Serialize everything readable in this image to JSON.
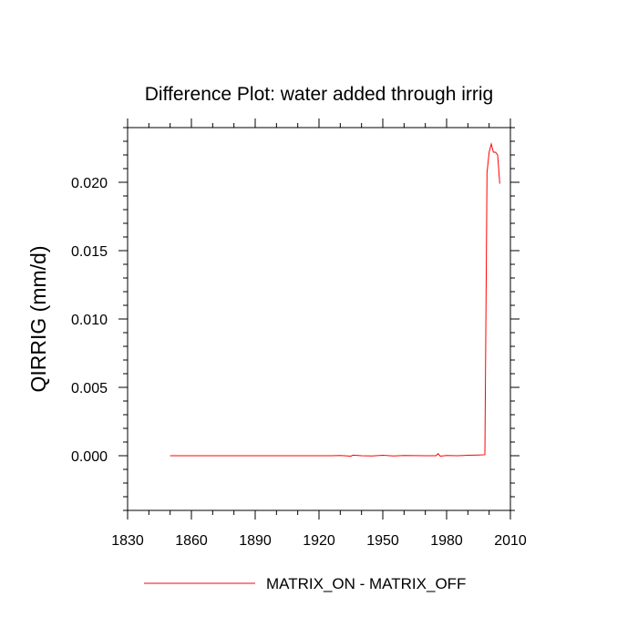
{
  "chart_data": {
    "type": "line",
    "title": "Difference Plot: water added through irrig",
    "xlabel": "",
    "ylabel": "QIRRIG  (mm/d)",
    "xlim": [
      1830,
      2010
    ],
    "ylim": [
      -0.004,
      0.024
    ],
    "x_ticks": [
      1830,
      1860,
      1890,
      1920,
      1950,
      1980,
      2010
    ],
    "x_tick_labels": [
      "1830",
      "1860",
      "1890",
      "1920",
      "1950",
      "1980",
      "2010"
    ],
    "y_ticks": [
      0.0,
      0.005,
      0.01,
      0.015,
      0.02
    ],
    "y_tick_labels": [
      "0.000",
      "0.005",
      "0.010",
      "0.015",
      "0.020"
    ],
    "legend_position": "bottom",
    "series": [
      {
        "name": "MATRIX_ON - MATRIX_OFF",
        "color": "#ff0000",
        "x": [
          1850,
          1900,
          1926,
          1930,
          1935,
          1936,
          1940,
          1945,
          1950,
          1955,
          1960,
          1970,
          1975,
          1976,
          1977,
          1980,
          1985,
          1990,
          1995,
          1998,
          1999,
          2000,
          2001,
          2002,
          2003,
          2004,
          2005
        ],
        "values": [
          0.0,
          0.0,
          0.0,
          2e-05,
          -3e-05,
          4e-05,
          0.0,
          -2e-05,
          3e-05,
          -2e-05,
          2e-05,
          0.0,
          0.0,
          0.00015,
          -3e-05,
          2e-05,
          0.0,
          3e-05,
          5e-05,
          7e-05,
          0.0207,
          0.0222,
          0.0228,
          0.0222,
          0.0222,
          0.022,
          0.0199
        ]
      }
    ]
  }
}
